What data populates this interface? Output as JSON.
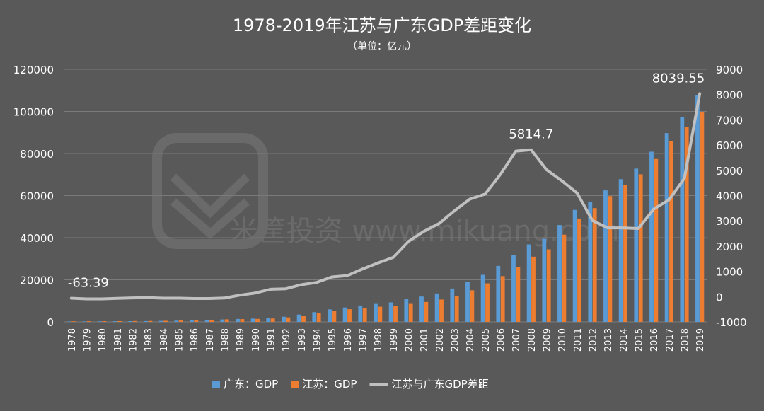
{
  "chart_data": {
    "type": "bar",
    "title": "1978-2019年江苏与广东GDP差距变化",
    "subtitle": "（单位：亿元）",
    "watermark": "米筐投资 www.mikuang.com",
    "x": [
      "1978",
      "1979",
      "1980",
      "1981",
      "1982",
      "1983",
      "1984",
      "1985",
      "1986",
      "1987",
      "1988",
      "1989",
      "1990",
      "1991",
      "1992",
      "1993",
      "1994",
      "1995",
      "1996",
      "1997",
      "1998",
      "1999",
      "2000",
      "2001",
      "2002",
      "2003",
      "2004",
      "2005",
      "2006",
      "2007",
      "2008",
      "2009",
      "2010",
      "2011",
      "2012",
      "2013",
      "2014",
      "2015",
      "2016",
      "2017",
      "2018",
      "2019"
    ],
    "y_left": {
      "min": 0,
      "max": 120000,
      "ticks": [
        0,
        20000,
        40000,
        60000,
        80000,
        100000,
        120000
      ]
    },
    "y_right": {
      "min": -1000,
      "max": 9000,
      "ticks": [
        -1000,
        0,
        1000,
        2000,
        3000,
        4000,
        5000,
        6000,
        7000,
        8000,
        9000
      ]
    },
    "grid": true,
    "legend_position": "bottom",
    "series": [
      {
        "name": "广东：GDP",
        "kind": "bar",
        "axis": "left",
        "color": "#5b9bd5",
        "values": [
          186,
          209,
          250,
          290,
          340,
          368,
          459,
          577,
          668,
          847,
          1155,
          1381,
          1559,
          1893,
          2447,
          3469,
          4619,
          5933,
          6834,
          7775,
          8531,
          9251,
          10741,
          12039,
          13502,
          15845,
          18865,
          22367,
          26588,
          31778,
          36797,
          39483,
          46013,
          53210,
          57068,
          62475,
          67810,
          72813,
          80855,
          89705,
          97278,
          107671
        ]
      },
      {
        "name": "江苏：GDP",
        "kind": "bar",
        "axis": "left",
        "color": "#ed7d31",
        "values": [
          249,
          298,
          320,
          350,
          390,
          438,
          518,
          652,
          744,
          922,
          1209,
          1322,
          1417,
          1601,
          2136,
          2998,
          4057,
          5155,
          6004,
          6680,
          7200,
          7698,
          8554,
          9456,
          10607,
          12443,
          15004,
          18306,
          21742,
          26018,
          30982,
          34457,
          41425,
          49110,
          54058,
          59754,
          65088,
          70116,
          77388,
          85870,
          92595,
          99632
        ]
      },
      {
        "name": "江苏与广东GDP差距",
        "kind": "line",
        "axis": "right",
        "color": "#c0c0c0",
        "values": [
          -63.39,
          -89,
          -90,
          -70,
          -50,
          -40,
          -60,
          -60,
          -76,
          -75,
          -54,
          59,
          142,
          292,
          311,
          471,
          562,
          778,
          830,
          1095,
          1331,
          1553,
          2187,
          2583,
          2895,
          3402,
          3861,
          4061,
          4846,
          5760,
          5814.7,
          5026,
          4588,
          4100,
          3010,
          2721,
          2722,
          2697,
          3467,
          3835,
          4683,
          8039.55
        ]
      }
    ],
    "annotations": [
      {
        "label": "-63.39",
        "x": "1978",
        "value": -63.39
      },
      {
        "label": "5814.7",
        "x": "2008",
        "value": 5814.7
      },
      {
        "label": "8039.55",
        "x": "2019",
        "value": 8039.55
      }
    ]
  }
}
